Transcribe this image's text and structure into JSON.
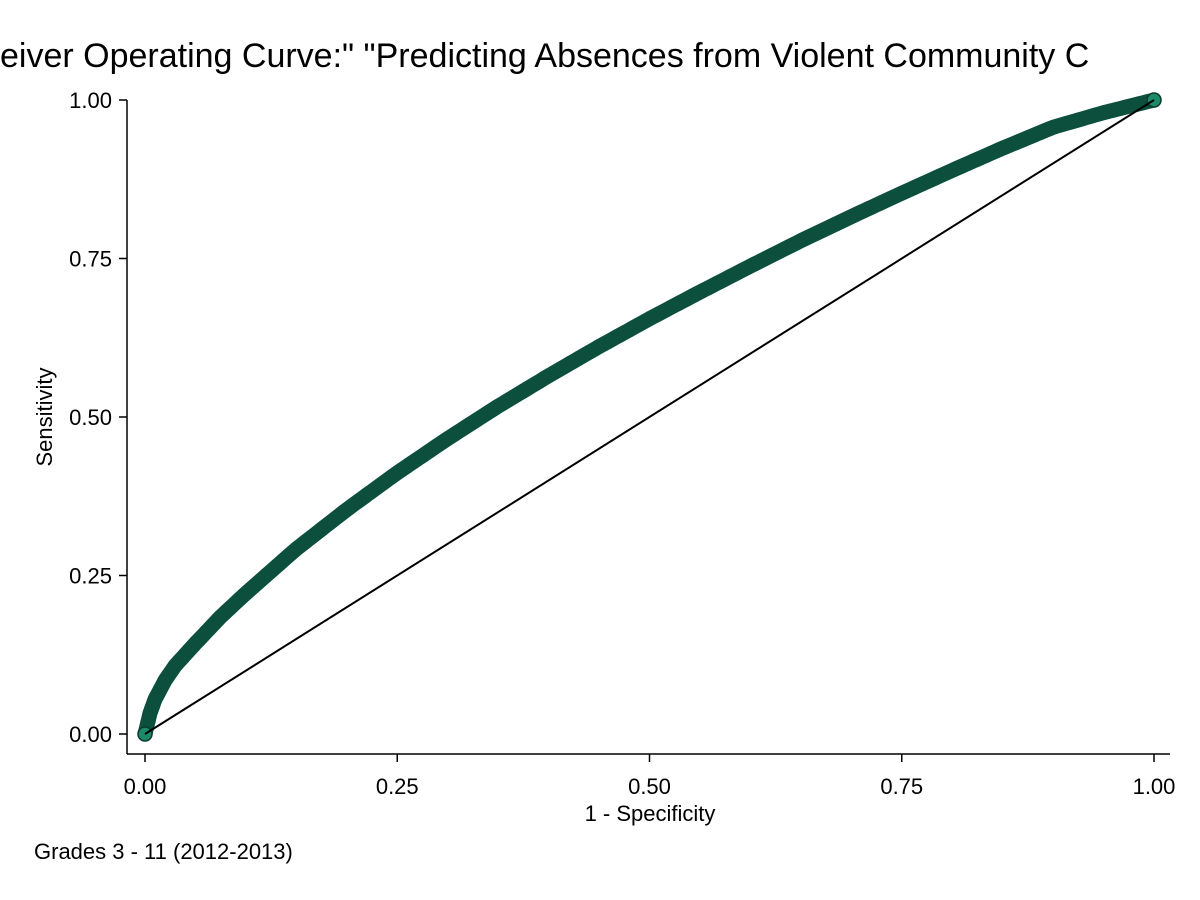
{
  "chart_data": {
    "type": "line",
    "title": "Receiver Operating Curve:\" \"Predicting Absences from Violent Community Crime",
    "title_visible_text": "eiver Operating Curve:\" \"Predicting Absences from Violent Community C",
    "xlabel": "1 - Specificity",
    "ylabel": "Sensitivity",
    "note": "Grades 3 - 11 (2012-2013)",
    "xlim": [
      0,
      1
    ],
    "ylim": [
      0,
      1
    ],
    "xticks": [
      "0.00",
      "0.25",
      "0.50",
      "0.75",
      "1.00"
    ],
    "yticks": [
      "0.00",
      "0.25",
      "0.50",
      "0.75",
      "1.00"
    ],
    "grid": false,
    "series": [
      {
        "x": [
          0,
          0.005,
          0.01,
          0.02,
          0.03,
          0.05,
          0.075,
          0.1,
          0.15,
          0.2,
          0.25,
          0.3,
          0.35,
          0.4,
          0.45,
          0.5,
          0.55,
          0.6,
          0.65,
          0.7,
          0.75,
          0.8,
          0.85,
          0.9,
          0.95,
          1.0
        ],
        "y": [
          0,
          0.033,
          0.055,
          0.085,
          0.108,
          0.143,
          0.185,
          0.222,
          0.292,
          0.354,
          0.412,
          0.466,
          0.517,
          0.565,
          0.611,
          0.655,
          0.697,
          0.738,
          0.778,
          0.816,
          0.853,
          0.889,
          0.924,
          0.957,
          0.98,
          1.0
        ],
        "color": "#0b4f3c",
        "style": "thick markers"
      }
    ],
    "reference_line": {
      "x": [
        0,
        1
      ],
      "y": [
        0,
        1
      ],
      "color": "#000000"
    },
    "endpoint_marker_color": "#1b8a68"
  }
}
